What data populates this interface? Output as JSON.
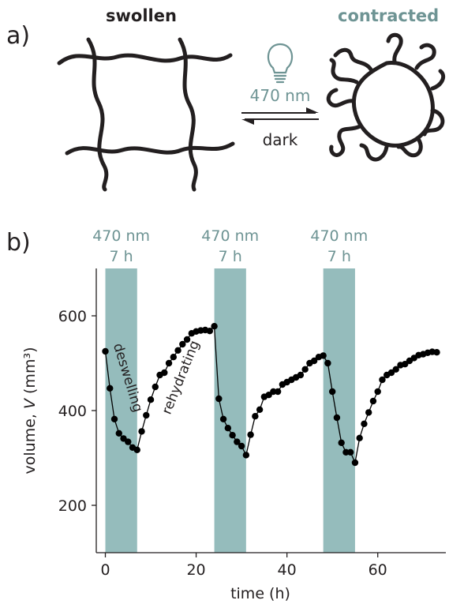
{
  "panel_a": {
    "label": "a)",
    "swollen_label": "swollen",
    "contracted_label": "contracted",
    "light_label": "470 nm",
    "dark_label": "dark",
    "icon": "lightbulb-icon",
    "colors": {
      "network": "#231f20",
      "accent": "#6e9494"
    }
  },
  "panel_b": {
    "label": "b)",
    "illum_labels": [
      {
        "top": "470 nm",
        "bottom": "7 h"
      },
      {
        "top": "470 nm",
        "bottom": "7 h"
      },
      {
        "top": "470 nm",
        "bottom": "7 h"
      }
    ],
    "annotations": {
      "deswelling": "deswelling",
      "rehydrating": "rehydrating"
    },
    "colors": {
      "band": "#95bcbc",
      "marker": "#000000",
      "text_accent": "#6e9494"
    }
  },
  "chart_data": {
    "type": "scatter",
    "xlabel": "time (h)",
    "ylabel_prefix": "volume, ",
    "ylabel_var": "V",
    "ylabel_unit": " (mm³)",
    "xlim": [
      -2,
      75
    ],
    "ylim": [
      100,
      700
    ],
    "xticks": [
      0,
      20,
      40,
      60
    ],
    "yticks": [
      200,
      400,
      600
    ],
    "grid": false,
    "shaded_intervals": [
      [
        0,
        7
      ],
      [
        24,
        31
      ],
      [
        48,
        55
      ]
    ],
    "series": [
      {
        "connected": true,
        "x": [
          0,
          1,
          2,
          3,
          4,
          5,
          6,
          7,
          8,
          9,
          10,
          11,
          12,
          13,
          14,
          15,
          16,
          17,
          18,
          19,
          20,
          21,
          22,
          23,
          24,
          25,
          26,
          27,
          28,
          29,
          30,
          31,
          32,
          33,
          34,
          35,
          36,
          37,
          38,
          39,
          40,
          41,
          42,
          43,
          44,
          45,
          46,
          47,
          48,
          49,
          50,
          51,
          52,
          53,
          54,
          55,
          56,
          57,
          58,
          59,
          60,
          61,
          62,
          63,
          64,
          65,
          66,
          67,
          68,
          69,
          70,
          71,
          72,
          73
        ],
        "y": [
          525,
          447,
          382,
          352,
          341,
          334,
          322,
          317,
          356,
          390,
          423,
          450,
          475,
          480,
          500,
          513,
          527,
          540,
          550,
          563,
          567,
          569,
          570,
          568,
          578,
          425,
          382,
          363,
          348,
          334,
          325,
          306,
          349,
          388,
          402,
          429,
          433,
          440,
          440,
          455,
          460,
          465,
          470,
          475,
          487,
          500,
          505,
          513,
          516,
          500,
          440,
          385,
          332,
          312,
          312,
          290,
          342,
          372,
          396,
          420,
          440,
          465,
          475,
          480,
          487,
          496,
          498,
          505,
          511,
          517,
          519,
          522,
          524,
          523
        ]
      }
    ]
  }
}
